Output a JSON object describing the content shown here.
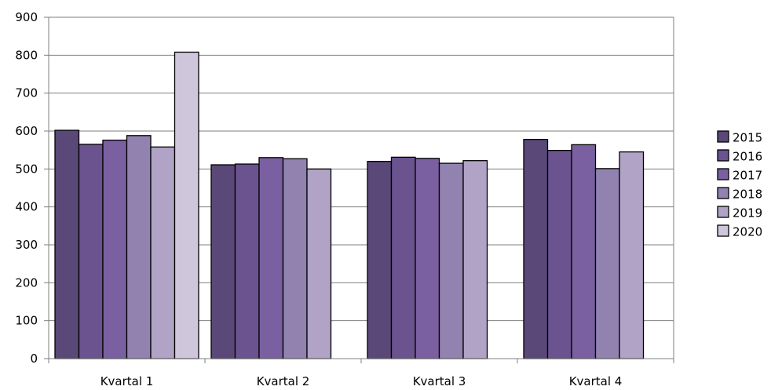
{
  "chart_data": {
    "type": "bar",
    "categories": [
      "Kvartal 1",
      "Kvartal 2",
      "Kvartal 3",
      "Kvartal 4"
    ],
    "series": [
      {
        "name": "2015",
        "color": "#5a4878",
        "values": [
          602,
          511,
          520,
          578
        ]
      },
      {
        "name": "2016",
        "color": "#6a538f",
        "values": [
          565,
          513,
          531,
          549
        ]
      },
      {
        "name": "2017",
        "color": "#7a60a0",
        "values": [
          576,
          530,
          528,
          564
        ]
      },
      {
        "name": "2018",
        "color": "#9182b0",
        "values": [
          588,
          527,
          515,
          501
        ]
      },
      {
        "name": "2019",
        "color": "#b0a3c6",
        "values": [
          558,
          500,
          522,
          545
        ]
      },
      {
        "name": "2020",
        "color": "#cfc6dc",
        "values": [
          808,
          null,
          null,
          null
        ]
      }
    ],
    "yticks": [
      "0",
      "100",
      "200",
      "300",
      "400",
      "500",
      "600",
      "700",
      "800",
      "900"
    ],
    "ylim": [
      0,
      900
    ],
    "grid": true,
    "legend_position": "right"
  }
}
